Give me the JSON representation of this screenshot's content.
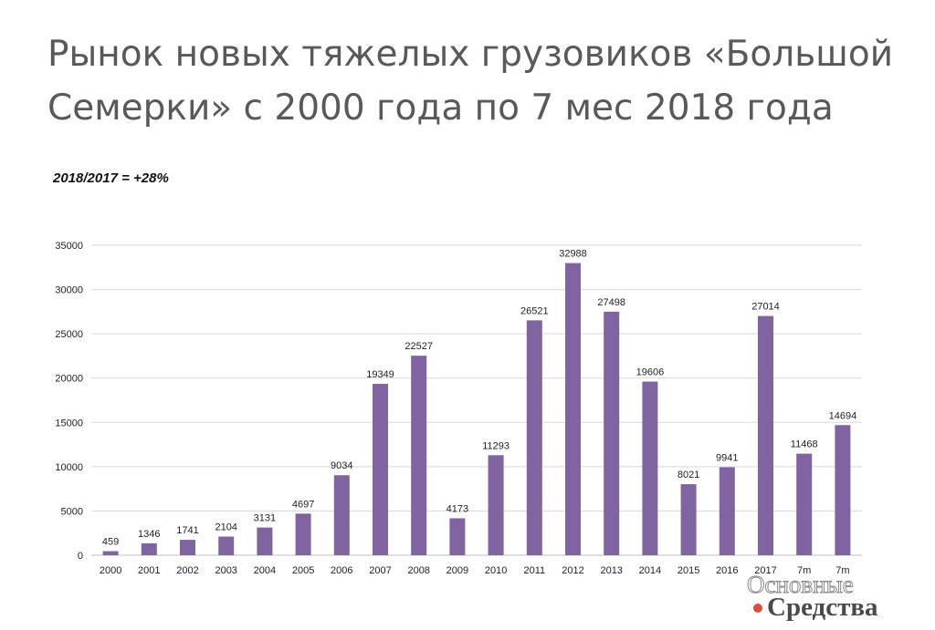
{
  "slide": {
    "title": "Рынок новых тяжелых грузовиков «Большой Семерки» с 2000 года по 7 мес 2018 года",
    "note": "2018/2017 = +28%"
  },
  "watermark": {
    "line1": "Основные",
    "line2": "Средства"
  },
  "chart_data": {
    "type": "bar",
    "categories": [
      "2000",
      "2001",
      "2002",
      "2003",
      "2004",
      "2005",
      "2006",
      "2007",
      "2008",
      "2009",
      "2010",
      "2011",
      "2012",
      "2013",
      "2014",
      "2015",
      "2016",
      "2017",
      "7m",
      "7m"
    ],
    "values": [
      459,
      1346,
      1741,
      2104,
      3131,
      4697,
      9034,
      19349,
      22527,
      4173,
      11293,
      26521,
      32988,
      27498,
      19606,
      8021,
      9941,
      27014,
      11468,
      14694
    ],
    "data_labels": [
      "459",
      "1346",
      "1741",
      "2104",
      "3131",
      "4697",
      "9034",
      "19349",
      "22527",
      "4173",
      "11293",
      "26521",
      "32988",
      "27498",
      "19606",
      "8021",
      "9941",
      "27014",
      "11468",
      "14694"
    ],
    "yticks": [
      "0",
      "5000",
      "10000",
      "15000",
      "20000",
      "25000",
      "30000",
      "35000"
    ],
    "ylim": [
      0,
      35000
    ],
    "grid": true,
    "bar_color": "#8064a2",
    "title": "",
    "xlabel": "",
    "ylabel": ""
  }
}
